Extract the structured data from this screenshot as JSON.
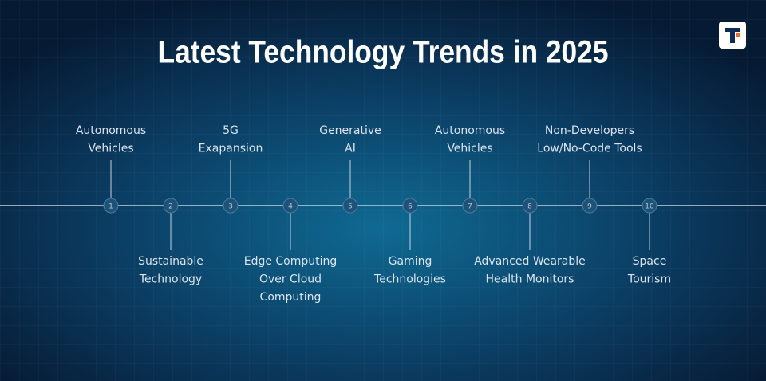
{
  "title": "Latest Technology Trends in 2025",
  "items": [
    {
      "number": "1",
      "label": [
        "Autonomous",
        "Vehicles"
      ]
    },
    {
      "number": "2",
      "label": [
        "Sustainable",
        "Technology"
      ]
    },
    {
      "number": "3",
      "label": [
        "5G",
        "Exapansion"
      ]
    },
    {
      "number": "4",
      "label": [
        "Edge Computing",
        "Over Cloud",
        "Computing"
      ]
    },
    {
      "number": "5",
      "label": [
        "Generative",
        "AI"
      ]
    },
    {
      "number": "6",
      "label": [
        "Gaming",
        "Technologies"
      ]
    },
    {
      "number": "7",
      "label": [
        "Autonomous",
        "Vehicles"
      ]
    },
    {
      "number": "8",
      "label": [
        "Advanced Wearable",
        "Health Monitors"
      ]
    },
    {
      "number": "9",
      "label": [
        "Non-Developers",
        "Low/No-Code Tools"
      ]
    },
    {
      "number": "10",
      "label": [
        "Space",
        "Tourism"
      ]
    }
  ]
}
